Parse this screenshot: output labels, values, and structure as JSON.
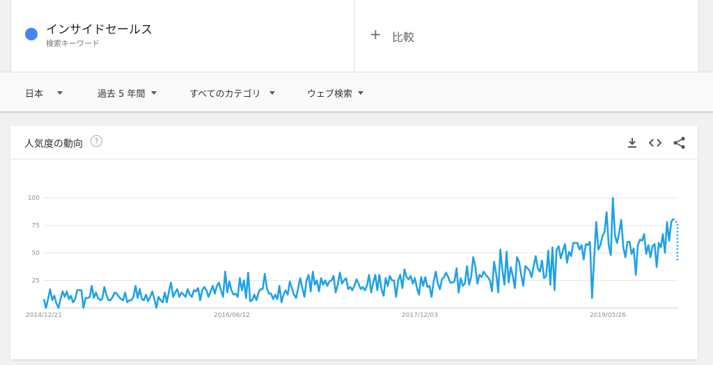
{
  "term": {
    "name": "インサイドセールス",
    "subtitle": "検索キーワード",
    "color": "#4285f4"
  },
  "compare": {
    "plus": "+",
    "label": "比較"
  },
  "filters": {
    "region": "日本",
    "period": "過去 5 年間",
    "category": "すべてのカテゴリ",
    "search_type": "ウェブ検索"
  },
  "card": {
    "title": "人気度の動向",
    "help": "?",
    "icons": [
      "download-icon",
      "embed-code-icon",
      "share-icon"
    ]
  },
  "chart_data": {
    "type": "line",
    "title": "",
    "xlabel": "",
    "ylabel": "",
    "ylim": [
      0,
      100
    ],
    "y_ticks": [
      25,
      50,
      75,
      100
    ],
    "x_ticks": [
      "2014/12/21",
      "2016/06/12",
      "2017/12/03",
      "2019/05/26"
    ],
    "grid": true,
    "line_color": "#1ea1e8",
    "series": [
      {
        "values": [
          8,
          0,
          8,
          17,
          7,
          11,
          4,
          0,
          8,
          15,
          10,
          15,
          8,
          11,
          5,
          8,
          16,
          16,
          16,
          0,
          9,
          9,
          10,
          20,
          9,
          14,
          9,
          7,
          8,
          19,
          12,
          7,
          7,
          10,
          14,
          13,
          10,
          8,
          7,
          14,
          5,
          7,
          7,
          10,
          20,
          9,
          17,
          8,
          7,
          12,
          6,
          10,
          15,
          8,
          0,
          10,
          7,
          5,
          14,
          5,
          15,
          23,
          10,
          14,
          17,
          10,
          14,
          12,
          10,
          17,
          12,
          10,
          16,
          15,
          18,
          7,
          16,
          19,
          16,
          10,
          15,
          20,
          13,
          20,
          23,
          16,
          10,
          33,
          14,
          24,
          16,
          12,
          13,
          10,
          27,
          16,
          25,
          9,
          32,
          6,
          7,
          12,
          7,
          14,
          17,
          17,
          31,
          18,
          13,
          13,
          8,
          12,
          8,
          20,
          5,
          12,
          16,
          12,
          24,
          18,
          12,
          9,
          18,
          27,
          18,
          10,
          25,
          30,
          15,
          33,
          21,
          25,
          15,
          27,
          21,
          25,
          20,
          24,
          25,
          29,
          14,
          21,
          32,
          22,
          25,
          27,
          17,
          19,
          16,
          20,
          26,
          22,
          17,
          19,
          16,
          20,
          30,
          14,
          23,
          30,
          16,
          30,
          17,
          11,
          27,
          20,
          29,
          25,
          25,
          10,
          25,
          30,
          18,
          35,
          28,
          26,
          29,
          22,
          27,
          18,
          12,
          28,
          20,
          28,
          19,
          20,
          10,
          24,
          33,
          22,
          17,
          26,
          28,
          32,
          28,
          23,
          23,
          24,
          36,
          14,
          27,
          20,
          22,
          38,
          21,
          28,
          46,
          38,
          22,
          30,
          28,
          33,
          30,
          28,
          25,
          15,
          42,
          31,
          14,
          53,
          34,
          21,
          51,
          23,
          37,
          29,
          18,
          46,
          42,
          30,
          20,
          38,
          36,
          34,
          28,
          38,
          47,
          36,
          33,
          43,
          27,
          29,
          52,
          21,
          55,
          16,
          53,
          56,
          45,
          52,
          58,
          41,
          51,
          47,
          59,
          59,
          59,
          53,
          57,
          44,
          58,
          57,
          60,
          9,
          45,
          78,
          53,
          57,
          65,
          69,
          87,
          57,
          48,
          100,
          66,
          59,
          68,
          80,
          55,
          46,
          60,
          60,
          49,
          54,
          30,
          57,
          62,
          61,
          67,
          49,
          57,
          46,
          56,
          58,
          37,
          59,
          55,
          67,
          50,
          78,
          61,
          78,
          81,
          79,
          77
        ]
      }
    ],
    "partial_tail_points": 2
  }
}
